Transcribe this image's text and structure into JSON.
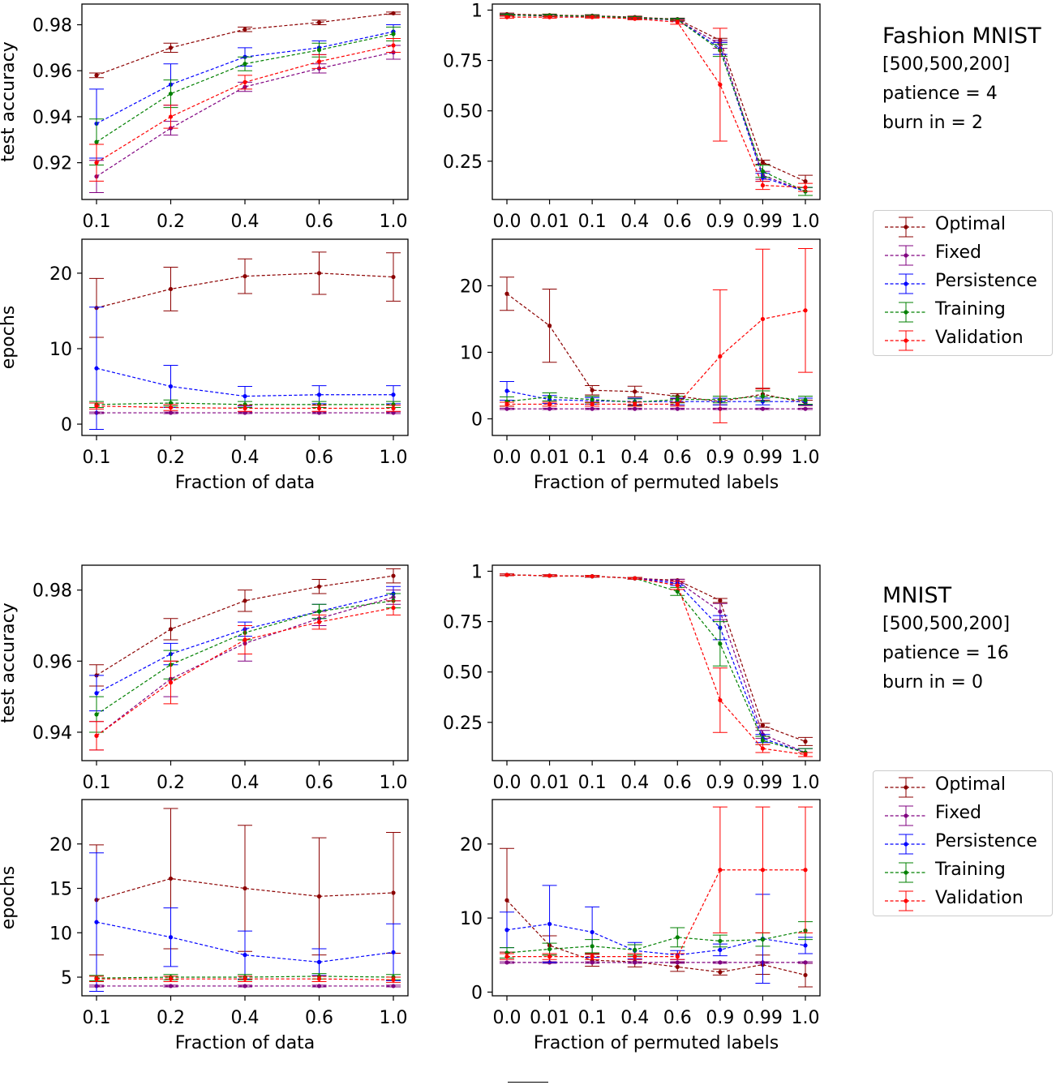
{
  "colors": {
    "Optimal": "#8b0000",
    "Fixed": "#800080",
    "Persistence": "#0000ff",
    "Training": "#008000",
    "Validation": "#ff0000"
  },
  "figures": [
    {
      "title": "Fashion MNIST",
      "lines": [
        "[500,500,200]",
        "patience = 4",
        "burn in = 2"
      ],
      "legend": [
        "Optimal",
        "Fixed",
        "Persistence",
        "Training",
        "Validation"
      ]
    },
    {
      "title": "MNIST",
      "lines": [
        "[500,500,200]",
        "patience = 16",
        "burn in = 0"
      ],
      "legend": [
        "Optimal",
        "Fixed",
        "Persistence",
        "Training",
        "Validation"
      ]
    }
  ],
  "chart_data": [
    {
      "type": "line",
      "panel": "fmnist-accuracy-vs-data",
      "xlabel": "",
      "ylabel": "test accuracy",
      "categories": [
        "0.1",
        "0.2",
        "0.4",
        "0.6",
        "1.0"
      ],
      "ylim": [
        0.904,
        0.989
      ],
      "yticks": [
        0.92,
        0.94,
        0.96,
        0.98
      ],
      "series": [
        {
          "name": "Optimal",
          "values": [
            0.958,
            0.97,
            0.978,
            0.981,
            0.985
          ],
          "err": [
            0.001,
            0.002,
            0.001,
            0.001,
            0.0005
          ]
        },
        {
          "name": "Fixed",
          "values": [
            0.914,
            0.935,
            0.953,
            0.961,
            0.968
          ],
          "err": [
            0.007,
            0.003,
            0.002,
            0.002,
            0.003
          ]
        },
        {
          "name": "Persistence",
          "values": [
            0.937,
            0.954,
            0.966,
            0.97,
            0.977
          ],
          "err": [
            0.015,
            0.009,
            0.004,
            0.003,
            0.003
          ]
        },
        {
          "name": "Training",
          "values": [
            0.929,
            0.95,
            0.963,
            0.969,
            0.976
          ],
          "err": [
            0.01,
            0.006,
            0.003,
            0.003,
            0.003
          ]
        },
        {
          "name": "Validation",
          "values": [
            0.92,
            0.94,
            0.955,
            0.964,
            0.971
          ],
          "err": [
            0.008,
            0.005,
            0.003,
            0.003,
            0.003
          ]
        }
      ]
    },
    {
      "type": "line",
      "panel": "fmnist-accuracy-vs-permuted",
      "xlabel": "",
      "ylabel": "",
      "categories": [
        "0.0",
        "0.01",
        "0.1",
        "0.4",
        "0.6",
        "0.9",
        "0.99",
        "1.0"
      ],
      "ylim": [
        0.06,
        1.03
      ],
      "yticks": [
        0.25,
        0.5,
        0.75,
        1.0
      ],
      "series": [
        {
          "name": "Optimal",
          "values": [
            0.98,
            0.975,
            0.972,
            0.965,
            0.955,
            0.85,
            0.245,
            0.15
          ],
          "err": [
            0.005,
            0.005,
            0.005,
            0.005,
            0.005,
            0.01,
            0.01,
            0.03
          ]
        },
        {
          "name": "Fixed",
          "values": [
            0.975,
            0.972,
            0.97,
            0.96,
            0.95,
            0.83,
            0.18,
            0.1
          ],
          "err": [
            0.005,
            0.005,
            0.005,
            0.005,
            0.005,
            0.02,
            0.02,
            0.02
          ]
        },
        {
          "name": "Persistence",
          "values": [
            0.975,
            0.972,
            0.97,
            0.962,
            0.953,
            0.81,
            0.17,
            0.1
          ],
          "err": [
            0.005,
            0.005,
            0.005,
            0.005,
            0.005,
            0.03,
            0.02,
            0.02
          ]
        },
        {
          "name": "Training",
          "values": [
            0.975,
            0.973,
            0.97,
            0.962,
            0.953,
            0.8,
            0.2,
            0.1
          ],
          "err": [
            0.005,
            0.005,
            0.005,
            0.005,
            0.005,
            0.03,
            0.03,
            0.02
          ]
        },
        {
          "name": "Validation",
          "values": [
            0.965,
            0.965,
            0.965,
            0.957,
            0.94,
            0.63,
            0.13,
            0.12
          ],
          "err": [
            0.005,
            0.005,
            0.005,
            0.005,
            0.01,
            0.28,
            0.02,
            0.02
          ]
        }
      ]
    },
    {
      "type": "line",
      "panel": "fmnist-epochs-vs-data",
      "xlabel": "Fraction of data",
      "ylabel": "epochs",
      "categories": [
        "0.1",
        "0.2",
        "0.4",
        "0.6",
        "1.0"
      ],
      "ylim": [
        -1.5,
        24.5
      ],
      "yticks": [
        0,
        10,
        20
      ],
      "series": [
        {
          "name": "Optimal",
          "values": [
            15.4,
            17.9,
            19.6,
            20.0,
            19.5
          ],
          "err": [
            3.9,
            2.9,
            2.3,
            2.8,
            3.2
          ]
        },
        {
          "name": "Fixed",
          "values": [
            1.5,
            1.5,
            1.5,
            1.5,
            1.5
          ],
          "err": [
            0.1,
            0.1,
            0.1,
            0.1,
            0.1
          ]
        },
        {
          "name": "Persistence",
          "values": [
            7.4,
            5.0,
            3.7,
            3.9,
            3.9
          ],
          "err": [
            8.1,
            2.8,
            1.3,
            1.2,
            1.2
          ]
        },
        {
          "name": "Training",
          "values": [
            2.6,
            2.8,
            2.6,
            2.6,
            2.6
          ],
          "err": [
            0.4,
            0.4,
            0.4,
            0.4,
            0.4
          ]
        },
        {
          "name": "Validation",
          "values": [
            2.4,
            2.2,
            2.1,
            2.1,
            2.1
          ],
          "err": [
            0.4,
            0.4,
            0.4,
            0.4,
            0.4
          ]
        }
      ]
    },
    {
      "type": "line",
      "panel": "fmnist-epochs-vs-permuted",
      "xlabel": "Fraction of permuted labels",
      "ylabel": "",
      "categories": [
        "0.0",
        "0.01",
        "0.1",
        "0.4",
        "0.6",
        "0.9",
        "0.99",
        "1.0"
      ],
      "ylim": [
        -2.5,
        27
      ],
      "yticks": [
        0,
        10,
        20
      ],
      "series": [
        {
          "name": "Optimal",
          "values": [
            18.8,
            14.0,
            4.3,
            4.1,
            3.4,
            2.6,
            3.7,
            2.4
          ],
          "err": [
            2.5,
            5.5,
            0.7,
            0.8,
            0.4,
            0.5,
            0.9,
            0.4
          ]
        },
        {
          "name": "Fixed",
          "values": [
            1.5,
            1.5,
            1.5,
            1.5,
            1.5,
            1.5,
            1.5,
            1.5
          ],
          "err": [
            0.1,
            0.1,
            0.1,
            0.1,
            0.1,
            0.1,
            0.1,
            0.1
          ]
        },
        {
          "name": "Persistence",
          "values": [
            4.2,
            2.9,
            2.7,
            2.6,
            2.6,
            2.6,
            2.6,
            2.6
          ],
          "err": [
            1.4,
            0.6,
            0.5,
            0.5,
            0.5,
            0.5,
            0.5,
            0.5
          ]
        },
        {
          "name": "Training",
          "values": [
            2.6,
            3.3,
            2.9,
            2.5,
            2.9,
            2.9,
            3.4,
            2.8
          ],
          "err": [
            0.7,
            0.6,
            0.5,
            0.5,
            0.5,
            0.5,
            0.8,
            0.6
          ]
        },
        {
          "name": "Validation",
          "values": [
            2.2,
            2.2,
            2.2,
            2.2,
            2.2,
            9.4,
            15.0,
            16.3
          ],
          "err": [
            0.3,
            0.3,
            0.3,
            0.3,
            0.3,
            10.0,
            10.5,
            9.3
          ]
        }
      ]
    },
    {
      "type": "line",
      "panel": "mnist-accuracy-vs-data",
      "xlabel": "",
      "ylabel": "test accuracy",
      "categories": [
        "0.1",
        "0.2",
        "0.4",
        "0.6",
        "1.0"
      ],
      "ylim": [
        0.932,
        0.987
      ],
      "yticks": [
        0.94,
        0.96,
        0.98
      ],
      "series": [
        {
          "name": "Optimal",
          "values": [
            0.956,
            0.969,
            0.977,
            0.981,
            0.984
          ],
          "err": [
            0.003,
            0.003,
            0.003,
            0.002,
            0.002
          ]
        },
        {
          "name": "Fixed",
          "values": [
            0.939,
            0.955,
            0.965,
            0.972,
            0.978
          ],
          "err": [
            0.004,
            0.005,
            0.005,
            0.002,
            0.002
          ]
        },
        {
          "name": "Persistence",
          "values": [
            0.951,
            0.962,
            0.969,
            0.974,
            0.979
          ],
          "err": [
            0.005,
            0.003,
            0.002,
            0.002,
            0.002
          ]
        },
        {
          "name": "Training",
          "values": [
            0.945,
            0.959,
            0.968,
            0.974,
            0.977
          ],
          "err": [
            0.005,
            0.004,
            0.002,
            0.002,
            0.002
          ]
        },
        {
          "name": "Validation",
          "values": [
            0.939,
            0.954,
            0.966,
            0.971,
            0.975
          ],
          "err": [
            0.004,
            0.006,
            0.004,
            0.002,
            0.002
          ]
        }
      ]
    },
    {
      "type": "line",
      "panel": "mnist-accuracy-vs-permuted",
      "xlabel": "",
      "ylabel": "",
      "categories": [
        "0.0",
        "0.01",
        "0.1",
        "0.4",
        "0.6",
        "0.9",
        "0.99",
        "1.0"
      ],
      "ylim": [
        0.06,
        1.03
      ],
      "yticks": [
        0.25,
        0.5,
        0.75,
        1.0
      ],
      "series": [
        {
          "name": "Optimal",
          "values": [
            0.982,
            0.978,
            0.975,
            0.965,
            0.955,
            0.855,
            0.235,
            0.155
          ],
          "err": [
            0.004,
            0.004,
            0.004,
            0.004,
            0.005,
            0.01,
            0.01,
            0.02
          ]
        },
        {
          "name": "Fixed",
          "values": [
            0.982,
            0.978,
            0.975,
            0.965,
            0.95,
            0.8,
            0.19,
            0.1
          ],
          "err": [
            0.004,
            0.004,
            0.004,
            0.004,
            0.01,
            0.04,
            0.02,
            0.02
          ]
        },
        {
          "name": "Persistence",
          "values": [
            0.982,
            0.978,
            0.975,
            0.965,
            0.94,
            0.72,
            0.17,
            0.1
          ],
          "err": [
            0.004,
            0.004,
            0.004,
            0.004,
            0.01,
            0.06,
            0.02,
            0.02
          ]
        },
        {
          "name": "Training",
          "values": [
            0.982,
            0.978,
            0.975,
            0.965,
            0.9,
            0.64,
            0.16,
            0.1
          ],
          "err": [
            0.004,
            0.004,
            0.004,
            0.004,
            0.02,
            0.11,
            0.02,
            0.02
          ]
        },
        {
          "name": "Validation",
          "values": [
            0.982,
            0.978,
            0.975,
            0.965,
            0.93,
            0.36,
            0.12,
            0.09
          ],
          "err": [
            0.004,
            0.004,
            0.004,
            0.004,
            0.02,
            0.16,
            0.02,
            0.01
          ]
        }
      ]
    },
    {
      "type": "line",
      "panel": "mnist-epochs-vs-data",
      "xlabel": "Fraction of data",
      "ylabel": "epochs",
      "categories": [
        "0.1",
        "0.2",
        "0.4",
        "0.6",
        "1.0"
      ],
      "ylim": [
        2.9,
        25.0
      ],
      "yticks": [
        5,
        10,
        15,
        20
      ],
      "series": [
        {
          "name": "Optimal",
          "values": [
            13.7,
            16.1,
            15.0,
            14.1,
            14.5
          ],
          "err": [
            6.2,
            7.9,
            7.1,
            6.6,
            6.8
          ]
        },
        {
          "name": "Fixed",
          "values": [
            4.0,
            4.0,
            4.0,
            4.0,
            4.0
          ],
          "err": [
            0.1,
            0.1,
            0.1,
            0.1,
            0.1
          ]
        },
        {
          "name": "Persistence",
          "values": [
            11.2,
            9.5,
            7.5,
            6.7,
            7.8
          ],
          "err": [
            7.8,
            3.3,
            2.7,
            1.5,
            3.2
          ]
        },
        {
          "name": "Training",
          "values": [
            4.9,
            5.0,
            5.0,
            5.1,
            5.0
          ],
          "err": [
            0.3,
            0.3,
            0.3,
            0.3,
            0.3
          ]
        },
        {
          "name": "Validation",
          "values": [
            4.8,
            4.8,
            4.8,
            4.8,
            4.7
          ],
          "err": [
            0.3,
            0.3,
            0.3,
            0.3,
            0.3
          ]
        }
      ]
    },
    {
      "type": "line",
      "panel": "mnist-epochs-vs-permuted",
      "xlabel": "Fraction of permuted labels",
      "ylabel": "",
      "categories": [
        "0.0",
        "0.01",
        "0.1",
        "0.4",
        "0.6",
        "0.9",
        "0.99",
        "1.0"
      ],
      "ylim": [
        -0.5,
        26.0
      ],
      "yticks": [
        0,
        10,
        20
      ],
      "series": [
        {
          "name": "Optimal",
          "values": [
            12.4,
            6.3,
            4.3,
            4.1,
            3.4,
            2.7,
            3.7,
            2.3
          ],
          "err": [
            7.0,
            1.3,
            0.8,
            0.7,
            0.6,
            0.4,
            1.3,
            1.6
          ]
        },
        {
          "name": "Fixed",
          "values": [
            4.0,
            4.0,
            4.0,
            4.0,
            4.0,
            4.0,
            4.0,
            4.0
          ],
          "err": [
            0.1,
            0.1,
            0.1,
            0.1,
            0.1,
            0.1,
            0.1,
            0.1
          ]
        },
        {
          "name": "Persistence",
          "values": [
            8.4,
            9.2,
            8.1,
            5.6,
            5.0,
            5.7,
            7.2,
            6.3
          ],
          "err": [
            2.4,
            5.2,
            3.4,
            1.1,
            0.6,
            0.8,
            6.0,
            1.1
          ]
        },
        {
          "name": "Training",
          "values": [
            5.3,
            5.8,
            6.2,
            5.7,
            7.4,
            6.9,
            7.1,
            8.3
          ],
          "err": [
            0.7,
            0.8,
            0.9,
            0.7,
            1.3,
            0.8,
            0.9,
            1.2
          ]
        },
        {
          "name": "Validation",
          "values": [
            4.8,
            4.8,
            4.8,
            4.8,
            4.8,
            16.5,
            16.5,
            16.5
          ],
          "err": [
            0.4,
            0.4,
            0.4,
            0.4,
            0.4,
            8.5,
            8.5,
            8.5
          ]
        }
      ]
    }
  ]
}
